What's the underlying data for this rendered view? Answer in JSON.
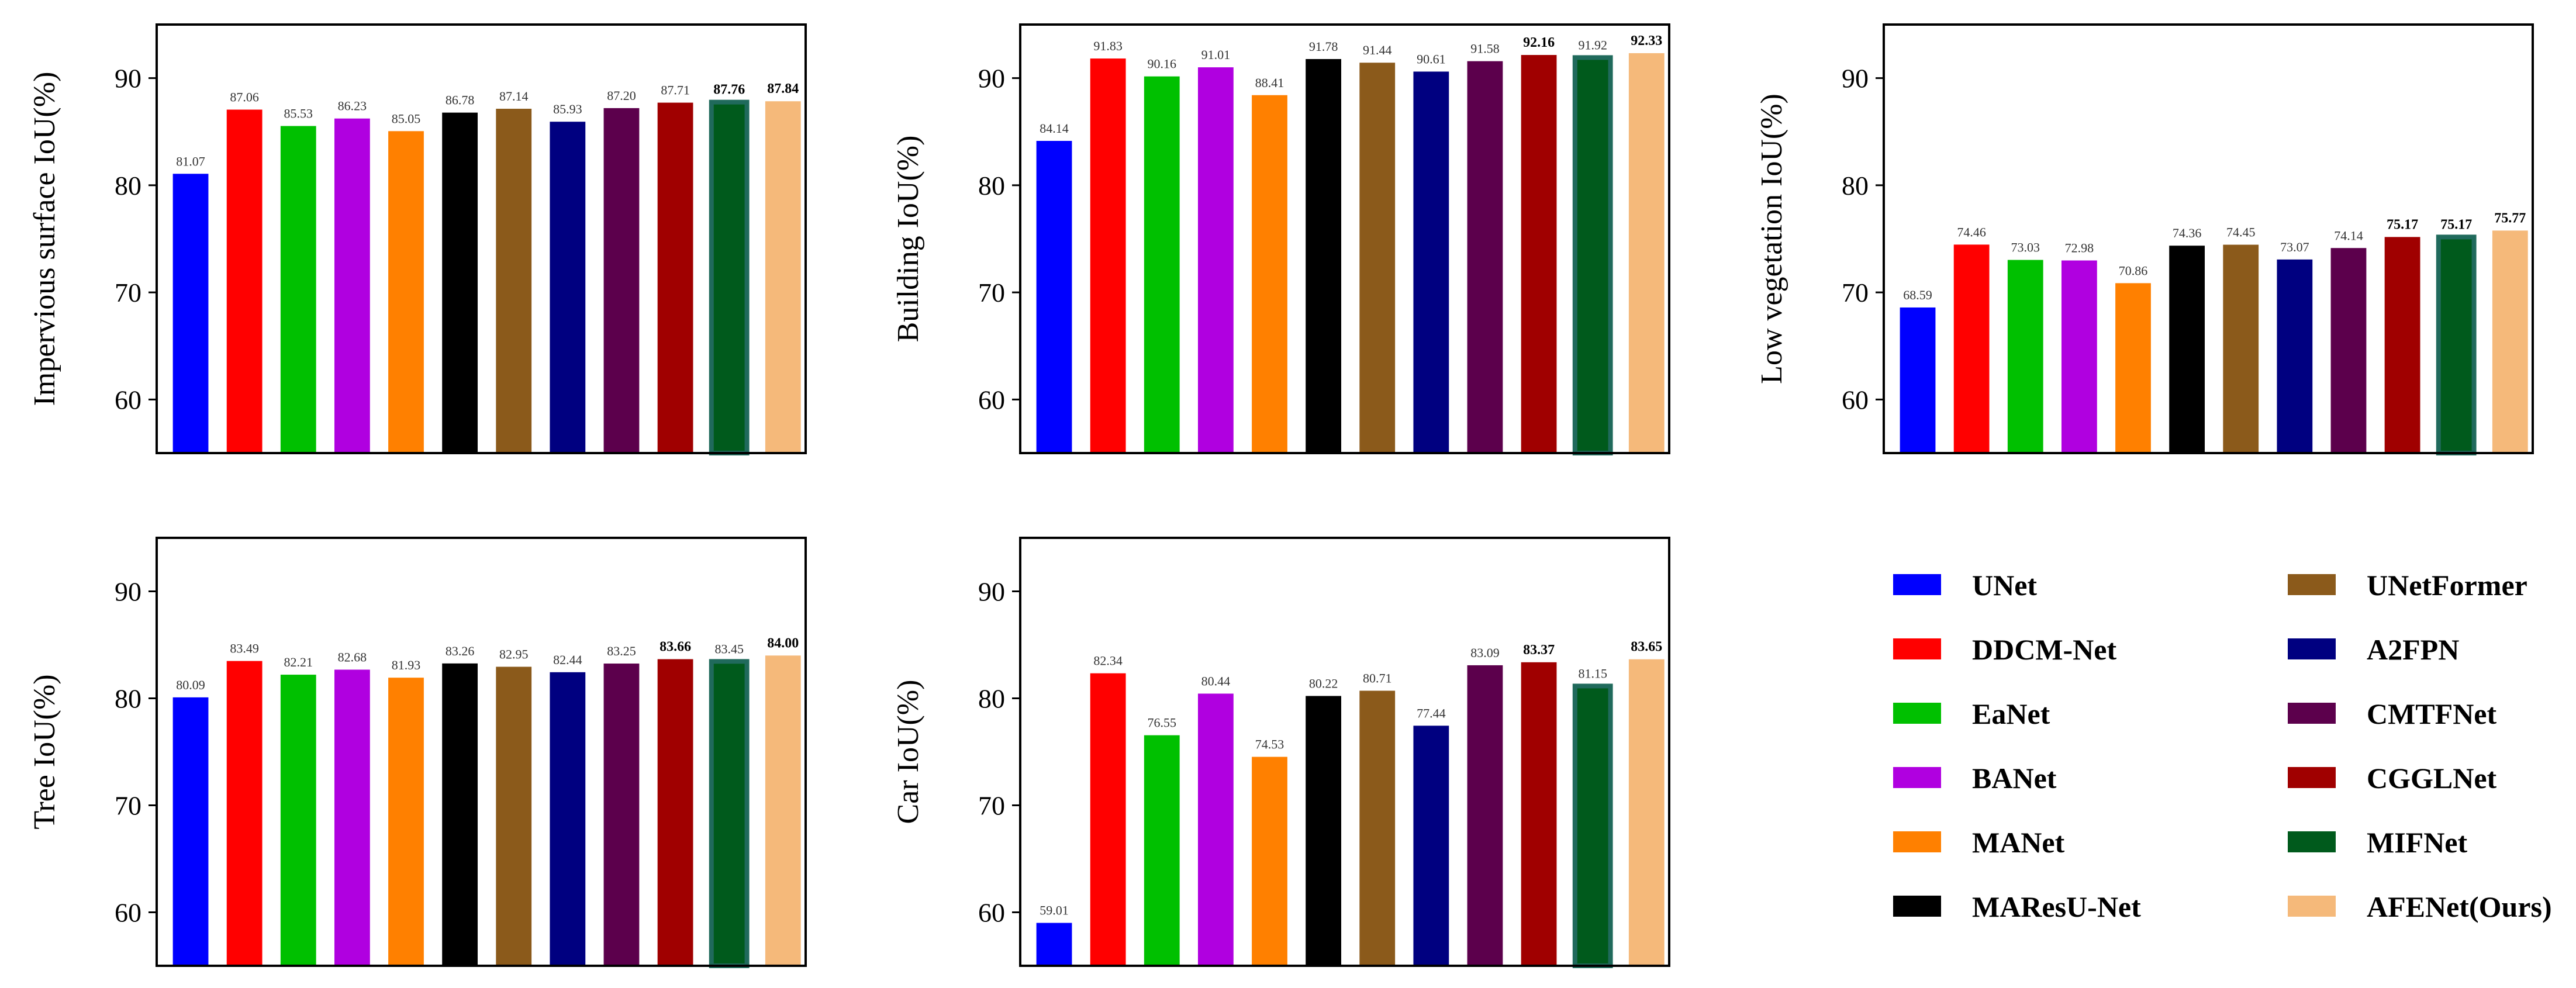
{
  "chart_data": [
    {
      "type": "bar",
      "title": "",
      "ylabel": "Impervious surface IoU(%)",
      "ylim": [
        55,
        95
      ],
      "yticks": [
        60,
        70,
        80,
        90
      ],
      "categories": [
        "UNet",
        "DDCM-Net",
        "EaNet",
        "BANet",
        "MANet",
        "MAResU-Net",
        "UNetFormer",
        "A2FPN",
        "CMTFNet",
        "CGGLNet",
        "MIFNet",
        "AFENet(Ours)"
      ],
      "values": [
        81.07,
        87.06,
        85.53,
        86.23,
        85.05,
        86.78,
        87.14,
        85.93,
        87.2,
        87.71,
        87.76,
        87.84
      ],
      "labels": [
        "81.07",
        "87.06",
        "85.53",
        "86.23",
        "85.05",
        "86.78",
        "87.14",
        "85.93",
        "87.20",
        "87.71",
        "87.76",
        "87.84"
      ],
      "bold": [
        10,
        11
      ]
    },
    {
      "type": "bar",
      "title": "",
      "ylabel": "Building IoU(%)",
      "ylim": [
        55,
        95
      ],
      "yticks": [
        60,
        70,
        80,
        90
      ],
      "categories": [
        "UNet",
        "DDCM-Net",
        "EaNet",
        "BANet",
        "MANet",
        "MAResU-Net",
        "UNetFormer",
        "A2FPN",
        "CMTFNet",
        "CGGLNet",
        "MIFNet",
        "AFENet(Ours)"
      ],
      "values": [
        84.14,
        91.83,
        90.16,
        91.01,
        88.41,
        91.78,
        91.44,
        90.61,
        91.58,
        92.16,
        91.92,
        92.33
      ],
      "labels": [
        "84.14",
        "91.83",
        "90.16",
        "91.01",
        "88.41",
        "91.78",
        "91.44",
        "90.61",
        "91.58",
        "92.16",
        "91.92",
        "92.33"
      ],
      "bold": [
        9,
        11
      ]
    },
    {
      "type": "bar",
      "title": "",
      "ylabel": "Low vegetation IoU(%)",
      "ylim": [
        55,
        95
      ],
      "yticks": [
        60,
        70,
        80,
        90
      ],
      "categories": [
        "UNet",
        "DDCM-Net",
        "EaNet",
        "BANet",
        "MANet",
        "MAResU-Net",
        "UNetFormer",
        "A2FPN",
        "CMTFNet",
        "CGGLNet",
        "MIFNet",
        "AFENet(Ours)"
      ],
      "values": [
        68.59,
        74.46,
        73.03,
        72.98,
        70.86,
        74.36,
        74.45,
        73.07,
        74.14,
        75.17,
        75.17,
        75.77
      ],
      "labels": [
        "68.59",
        "74.46",
        "73.03",
        "72.98",
        "70.86",
        "74.36",
        "74.45",
        "73.07",
        "74.14",
        "75.17",
        "75.17",
        "75.77"
      ],
      "bold": [
        9,
        10,
        11
      ]
    },
    {
      "type": "bar",
      "title": "",
      "ylabel": "Tree IoU(%)",
      "ylim": [
        55,
        95
      ],
      "yticks": [
        60,
        70,
        80,
        90
      ],
      "categories": [
        "UNet",
        "DDCM-Net",
        "EaNet",
        "BANet",
        "MANet",
        "MAResU-Net",
        "UNetFormer",
        "A2FPN",
        "CMTFNet",
        "CGGLNet",
        "MIFNet",
        "AFENet(Ours)"
      ],
      "values": [
        80.09,
        83.49,
        82.21,
        82.68,
        81.93,
        83.26,
        82.95,
        82.44,
        83.25,
        83.66,
        83.45,
        84.0
      ],
      "labels": [
        "80.09",
        "83.49",
        "82.21",
        "82.68",
        "81.93",
        "83.26",
        "82.95",
        "82.44",
        "83.25",
        "83.66",
        "83.45",
        "84.00"
      ],
      "bold": [
        9,
        11
      ]
    },
    {
      "type": "bar",
      "title": "",
      "ylabel": "Car IoU(%)",
      "ylim": [
        55,
        95
      ],
      "yticks": [
        60,
        70,
        80,
        90
      ],
      "categories": [
        "UNet",
        "DDCM-Net",
        "EaNet",
        "BANet",
        "MANet",
        "MAResU-Net",
        "UNetFormer",
        "A2FPN",
        "CMTFNet",
        "CGGLNet",
        "MIFNet",
        "AFENet(Ours)"
      ],
      "values": [
        59.01,
        82.34,
        76.55,
        80.44,
        74.53,
        80.22,
        80.71,
        77.44,
        83.09,
        83.37,
        81.15,
        83.65
      ],
      "labels": [
        "59.01",
        "82.34",
        "76.55",
        "80.44",
        "74.53",
        "80.22",
        "80.71",
        "77.44",
        "83.09",
        "83.37",
        "81.15",
        "83.65"
      ],
      "bold": [
        9,
        11
      ]
    }
  ],
  "legend": {
    "placement": "bottom-right",
    "items": [
      {
        "name": "UNet",
        "color": "#0000ff"
      },
      {
        "name": "DDCM-Net",
        "color": "#ff0000"
      },
      {
        "name": "EaNet",
        "color": "#00c000"
      },
      {
        "name": "BANet",
        "color": "#b000e0"
      },
      {
        "name": "MANet",
        "color": "#ff8000"
      },
      {
        "name": "MAResU-Net",
        "color": "#000000"
      },
      {
        "name": "UNetFormer",
        "color": "#8b5a1b"
      },
      {
        "name": "A2FPN",
        "color": "#000080"
      },
      {
        "name": "CMTFNet",
        "color": "#5c004c"
      },
      {
        "name": "CGGLNet",
        "color": "#a00000"
      },
      {
        "name": "MIFNet",
        "color": "#005a1c"
      },
      {
        "name": "AFENet(Ours)",
        "color": "#f5b97a"
      }
    ]
  },
  "special_styles": {
    "MIFNet_edge": "#206a5c"
  }
}
